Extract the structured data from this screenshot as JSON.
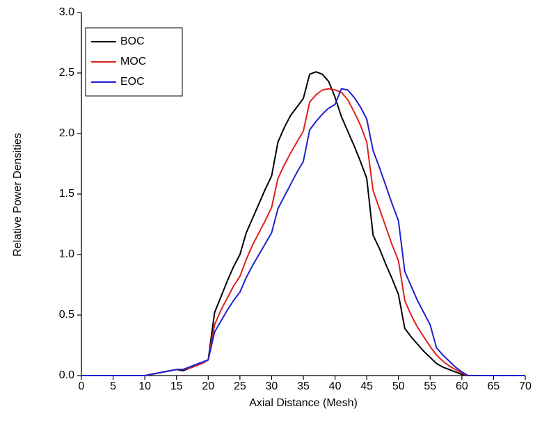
{
  "chart_data": {
    "type": "line",
    "xlabel": "Axial Distance (Mesh)",
    "ylabel": "Relative Power Densities",
    "x": [
      0,
      1,
      2,
      3,
      4,
      5,
      6,
      7,
      8,
      9,
      10,
      11,
      12,
      13,
      14,
      15,
      16,
      17,
      18,
      19,
      20,
      21,
      22,
      23,
      24,
      25,
      26,
      27,
      28,
      29,
      30,
      31,
      32,
      33,
      34,
      35,
      36,
      37,
      38,
      39,
      40,
      41,
      42,
      43,
      44,
      45,
      46,
      47,
      48,
      49,
      50,
      51,
      52,
      53,
      54,
      55,
      56,
      57,
      58,
      59,
      60,
      61,
      62,
      63,
      64,
      65,
      66,
      67,
      68,
      69,
      70
    ],
    "series": [
      {
        "name": "BOC",
        "color": "#000000",
        "values": [
          0,
          0,
          0,
          0,
          0,
          0,
          0,
          0,
          0,
          0,
          0,
          0.01,
          0.02,
          0.03,
          0.04,
          0.05,
          0.04,
          0.06,
          0.08,
          0.1,
          0.13,
          0.52,
          0.65,
          0.78,
          0.9,
          1.0,
          1.18,
          1.3,
          1.42,
          1.54,
          1.65,
          1.93,
          2.05,
          2.15,
          2.22,
          2.29,
          2.49,
          2.51,
          2.49,
          2.43,
          2.3,
          2.14,
          2.02,
          1.9,
          1.77,
          1.63,
          1.16,
          1.05,
          0.92,
          0.8,
          0.67,
          0.39,
          0.32,
          0.26,
          0.2,
          0.15,
          0.1,
          0.07,
          0.05,
          0.03,
          0.01,
          0,
          0,
          0,
          0,
          0,
          0,
          0,
          0,
          0,
          0
        ]
      },
      {
        "name": "MOC",
        "color": "#e0201b",
        "values": [
          0,
          0,
          0,
          0,
          0,
          0,
          0,
          0,
          0,
          0,
          0,
          0.01,
          0.02,
          0.03,
          0.04,
          0.05,
          0.05,
          0.06,
          0.08,
          0.1,
          0.13,
          0.42,
          0.54,
          0.64,
          0.74,
          0.82,
          0.96,
          1.08,
          1.18,
          1.28,
          1.39,
          1.63,
          1.74,
          1.84,
          1.93,
          2.02,
          2.26,
          2.32,
          2.36,
          2.37,
          2.36,
          2.34,
          2.28,
          2.18,
          2.07,
          1.93,
          1.53,
          1.38,
          1.23,
          1.08,
          0.95,
          0.62,
          0.5,
          0.4,
          0.32,
          0.24,
          0.17,
          0.12,
          0.08,
          0.05,
          0.02,
          0,
          0,
          0,
          0,
          0,
          0,
          0,
          0,
          0,
          0
        ]
      },
      {
        "name": "EOC",
        "color": "#1f1fd0",
        "values": [
          0,
          0,
          0,
          0,
          0,
          0,
          0,
          0,
          0,
          0,
          0,
          0.01,
          0.02,
          0.03,
          0.04,
          0.05,
          0.05,
          0.07,
          0.09,
          0.11,
          0.13,
          0.36,
          0.45,
          0.54,
          0.62,
          0.69,
          0.81,
          0.91,
          1.0,
          1.09,
          1.18,
          1.38,
          1.48,
          1.58,
          1.68,
          1.77,
          2.03,
          2.1,
          2.16,
          2.21,
          2.24,
          2.37,
          2.36,
          2.3,
          2.22,
          2.12,
          1.86,
          1.72,
          1.57,
          1.42,
          1.28,
          0.86,
          0.74,
          0.62,
          0.52,
          0.42,
          0.23,
          0.17,
          0.12,
          0.07,
          0.03,
          0,
          0,
          0,
          0,
          0,
          0,
          0,
          0,
          0,
          0
        ]
      }
    ],
    "xlim": [
      0,
      70
    ],
    "xticks": [
      0,
      5,
      10,
      15,
      20,
      25,
      30,
      35,
      40,
      45,
      50,
      55,
      60,
      65,
      70
    ],
    "ylim": [
      0,
      3.0
    ],
    "yticks": [
      {
        "value": 0,
        "label": "0.0"
      },
      0.5,
      {
        "value": 1,
        "label": "1.0"
      },
      1.5,
      {
        "value": 2,
        "label": "2.0"
      },
      2.5,
      {
        "value": 3,
        "label": "3.0"
      }
    ],
    "legend": "upper left"
  }
}
